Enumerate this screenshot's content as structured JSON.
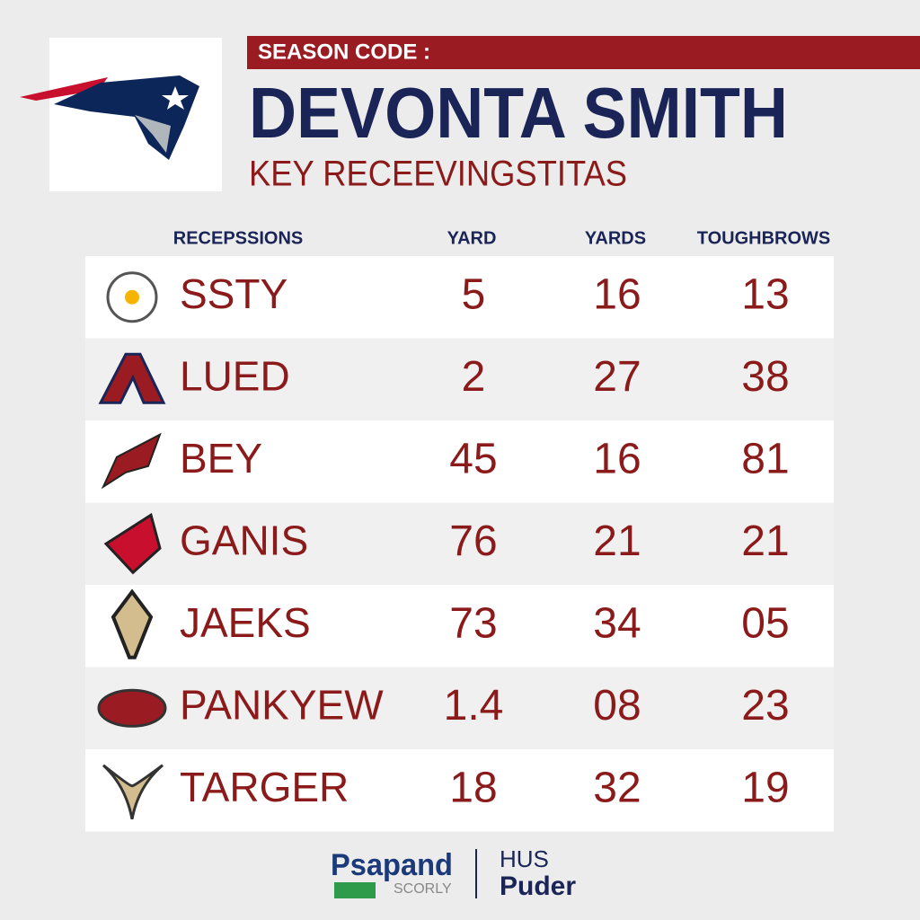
{
  "header": {
    "season_code": "SEASON CODE :",
    "title": "DEVONTA SMITH",
    "subtitle": "KEY RECEEVINGSTITAS"
  },
  "table": {
    "columns": [
      "RECEPSSIONS",
      "YARD",
      "YARDS",
      "TOUGHBROWS"
    ],
    "rows": [
      [
        "SSTY",
        "5",
        "16",
        "13"
      ],
      [
        "LUED",
        "2",
        "27",
        "38"
      ],
      [
        "BEY",
        "45",
        "16",
        "81"
      ],
      [
        "GANIS",
        "76",
        "21",
        "21"
      ],
      [
        "JAEKS",
        "73",
        "34",
        "05"
      ],
      [
        "PANKYEW",
        "1.4",
        "08",
        "23"
      ],
      [
        "TARGER",
        "18",
        "32",
        "19"
      ]
    ]
  },
  "footer": {
    "brand_1": "Psapand",
    "brand_1_sub": "SCORLY",
    "brand_2": "HUS",
    "brand_2_sub": "Puder"
  }
}
